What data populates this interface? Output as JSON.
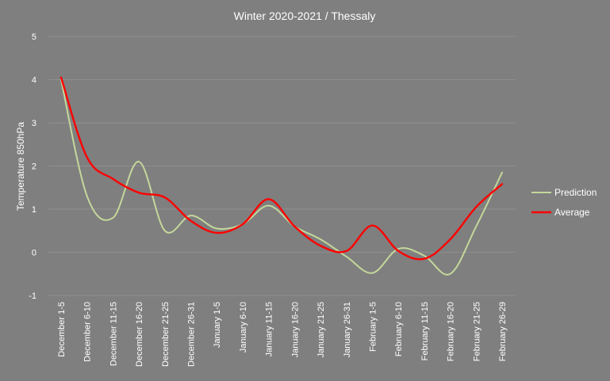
{
  "chart_data": {
    "type": "line",
    "title": "Winter 2020-2021 / Thessaly",
    "xlabel": "",
    "ylabel": "Temperature  850hPa",
    "ylim": [
      -1,
      5
    ],
    "yticks": [
      "5",
      "4",
      "3",
      "2",
      "1",
      "0",
      "-1"
    ],
    "grid": true,
    "legend_position": "right",
    "categories": [
      "December 1-5",
      "December 6-10",
      "December 11-15",
      "December 16-20",
      "December 21-25",
      "December 26-31",
      "January 1-5",
      "January 6-10",
      "January 11-15",
      "January 16-20",
      "January 21-25",
      "January 26-31",
      "February 1-5",
      "February 6-10",
      "February 11-15",
      "February 16-20",
      "February 21-25",
      "February 26-29"
    ],
    "series": [
      {
        "name": "Prediction",
        "color": "#c4d79b",
        "values": [
          4.0,
          1.3,
          0.8,
          2.1,
          0.5,
          0.85,
          0.55,
          0.65,
          1.08,
          0.6,
          0.3,
          -0.1,
          -0.48,
          0.08,
          -0.08,
          -0.5,
          0.6,
          1.85
        ]
      },
      {
        "name": "Average",
        "color": "#ff0000",
        "values": [
          4.05,
          2.2,
          1.7,
          1.38,
          1.27,
          0.73,
          0.45,
          0.65,
          1.23,
          0.6,
          0.15,
          0.03,
          0.62,
          0.03,
          -0.15,
          0.3,
          1.05,
          1.58
        ]
      }
    ]
  }
}
